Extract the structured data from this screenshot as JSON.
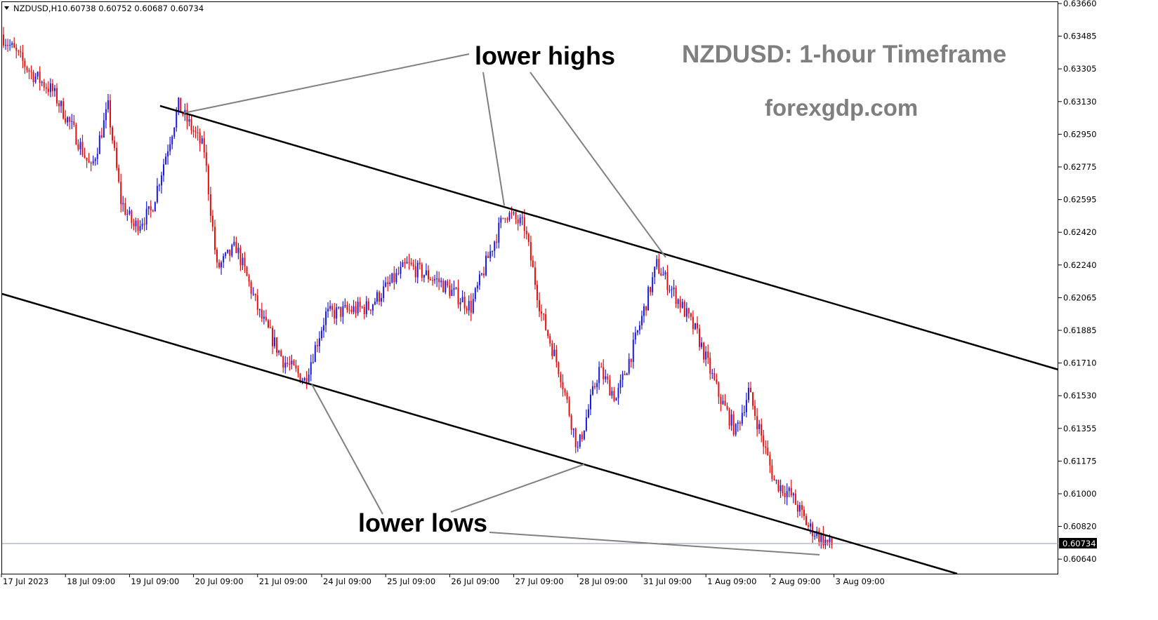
{
  "header": {
    "symbol": "NZDUSD,H1",
    "ohlc": "0.60738 0.60752 0.60687 0.60734"
  },
  "title": "NZDUSD: 1-hour Timeframe",
  "site": "forexgdp.com",
  "annotations": {
    "upper": "lower highs",
    "lower": "lower lows"
  },
  "colors": {
    "bull": "#1a1ae6",
    "bear": "#e60f0f",
    "channel": "#000000",
    "pointer": "#808080",
    "current_price_line": "#8c9bb4",
    "price_tag_bg": "#000000"
  },
  "chart_data": {
    "type": "candlestick",
    "y_ticks": [
      "0.63660",
      "0.63485",
      "0.63305",
      "0.63130",
      "0.62950",
      "0.62775",
      "0.62595",
      "0.62420",
      "0.62240",
      "0.62065",
      "0.61885",
      "0.61710",
      "0.61530",
      "0.61355",
      "0.61175",
      "0.61000",
      "0.60820",
      "0.60640"
    ],
    "x_ticks": [
      "17 Jul 2023",
      "18 Jul 09:00",
      "19 Jul 09:00",
      "20 Jul 09:00",
      "21 Jul 09:00",
      "24 Jul 09:00",
      "25 Jul 09:00",
      "26 Jul 09:00",
      "27 Jul 09:00",
      "28 Jul 09:00",
      "31 Jul 09:00",
      "1 Aug 09:00",
      "2 Aug 09:00",
      "3 Aug 09:00"
    ],
    "current_price": "0.60734",
    "ylim": [
      0.6055,
      0.6366
    ],
    "anchors": [
      {
        "t": 0,
        "p": 0.6349
      },
      {
        "t": 14,
        "p": 0.6328
      },
      {
        "t": 24,
        "p": 0.6318
      },
      {
        "t": 34,
        "p": 0.6296
      },
      {
        "t": 42,
        "p": 0.6275
      },
      {
        "t": 50,
        "p": 0.6309
      },
      {
        "t": 56,
        "p": 0.6258
      },
      {
        "t": 62,
        "p": 0.6244
      },
      {
        "t": 70,
        "p": 0.6252
      },
      {
        "t": 83,
        "p": 0.631
      },
      {
        "t": 95,
        "p": 0.6286
      },
      {
        "t": 101,
        "p": 0.6221
      },
      {
        "t": 110,
        "p": 0.6233
      },
      {
        "t": 121,
        "p": 0.6196
      },
      {
        "t": 132,
        "p": 0.6171
      },
      {
        "t": 142,
        "p": 0.616
      },
      {
        "t": 152,
        "p": 0.6196
      },
      {
        "t": 172,
        "p": 0.62
      },
      {
        "t": 190,
        "p": 0.6223
      },
      {
        "t": 205,
        "p": 0.6214
      },
      {
        "t": 220,
        "p": 0.62
      },
      {
        "t": 228,
        "p": 0.6227
      },
      {
        "t": 236,
        "p": 0.6252
      },
      {
        "t": 245,
        "p": 0.6244
      },
      {
        "t": 253,
        "p": 0.6196
      },
      {
        "t": 262,
        "p": 0.6163
      },
      {
        "t": 270,
        "p": 0.6122
      },
      {
        "t": 280,
        "p": 0.6166
      },
      {
        "t": 288,
        "p": 0.615
      },
      {
        "t": 296,
        "p": 0.6178
      },
      {
        "t": 307,
        "p": 0.6223
      },
      {
        "t": 318,
        "p": 0.6202
      },
      {
        "t": 326,
        "p": 0.6185
      },
      {
        "t": 336,
        "p": 0.6152
      },
      {
        "t": 344,
        "p": 0.6132
      },
      {
        "t": 350,
        "p": 0.6154
      },
      {
        "t": 362,
        "p": 0.6105
      },
      {
        "t": 370,
        "p": 0.6097
      },
      {
        "t": 378,
        "p": 0.608
      },
      {
        "t": 388,
        "p": 0.607
      }
    ]
  }
}
